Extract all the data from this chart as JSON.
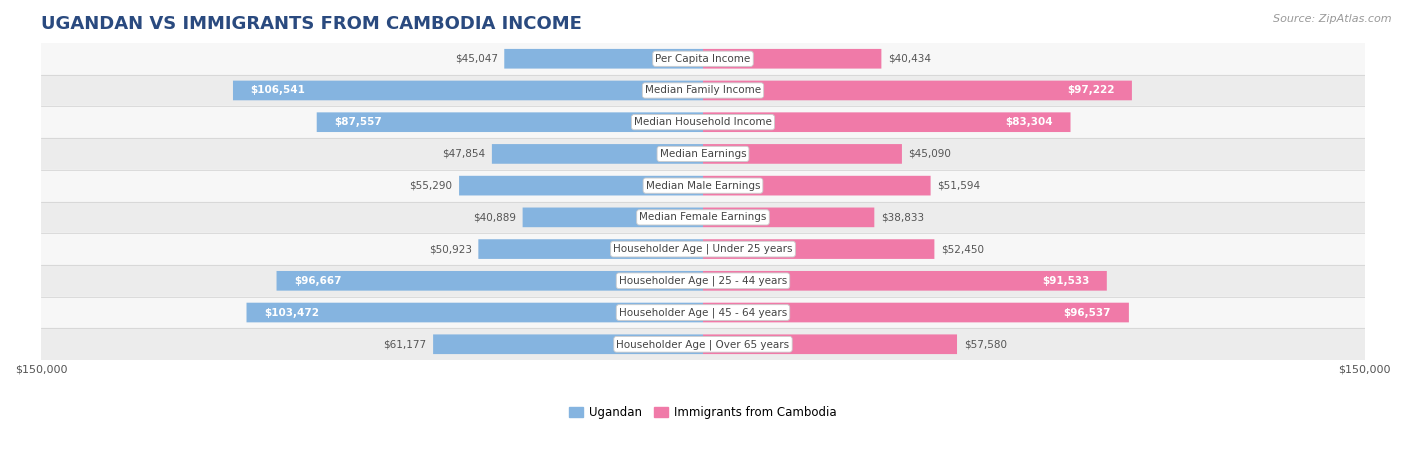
{
  "title": "UGANDAN VS IMMIGRANTS FROM CAMBODIA INCOME",
  "source": "Source: ZipAtlas.com",
  "categories": [
    "Per Capita Income",
    "Median Family Income",
    "Median Household Income",
    "Median Earnings",
    "Median Male Earnings",
    "Median Female Earnings",
    "Householder Age | Under 25 years",
    "Householder Age | 25 - 44 years",
    "Householder Age | 45 - 64 years",
    "Householder Age | Over 65 years"
  ],
  "ugandan": [
    45047,
    106541,
    87557,
    47854,
    55290,
    40889,
    50923,
    96667,
    103472,
    61177
  ],
  "cambodia": [
    40434,
    97222,
    83304,
    45090,
    51594,
    38833,
    52450,
    91533,
    96537,
    57580
  ],
  "max_val": 150000,
  "ugandan_color": "#85b4e0",
  "cambodia_color": "#f07aa8",
  "ugandan_label": "Ugandan",
  "cambodia_label": "Immigrants from Cambodia",
  "label_threshold_inside": 80000,
  "bar_height": 0.62,
  "bg_color": "#ffffff",
  "row_colors": [
    "#f7f7f7",
    "#ececec"
  ],
  "title_fontsize": 13,
  "source_fontsize": 8,
  "value_fontsize": 7.5,
  "category_fontsize": 7.5
}
